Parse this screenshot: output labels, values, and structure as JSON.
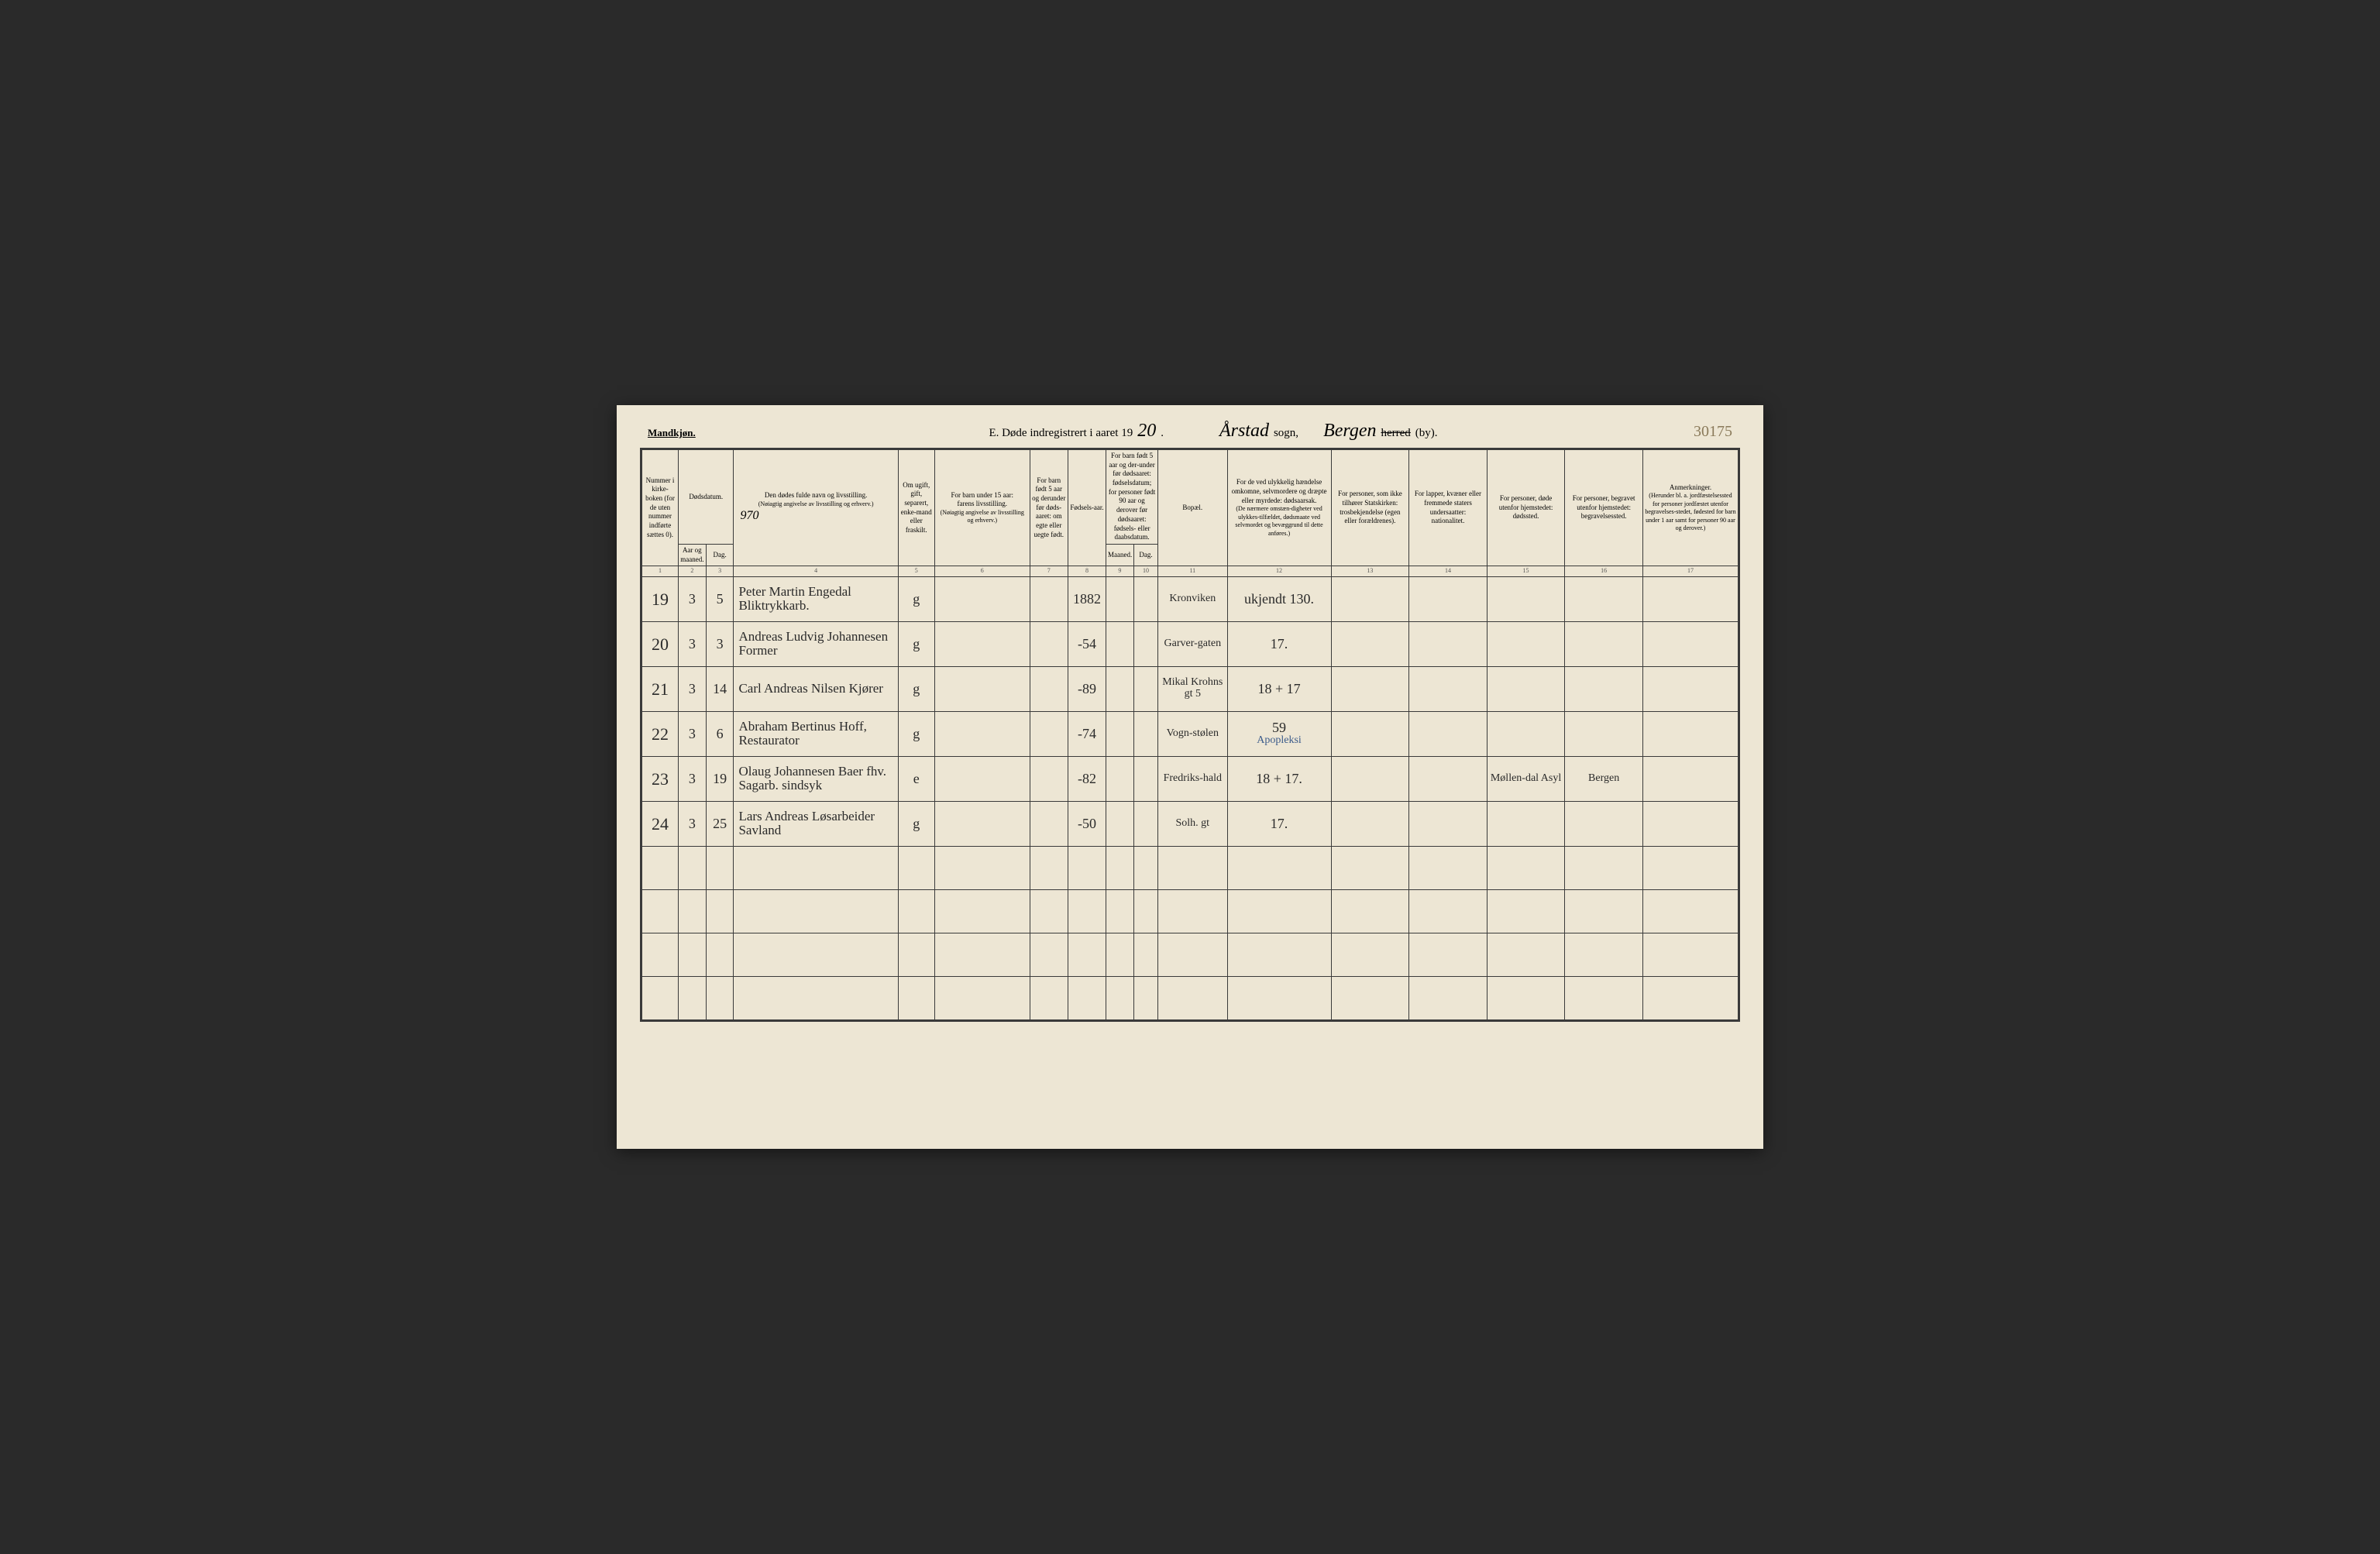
{
  "colors": {
    "paper": "#ede6d4",
    "ink": "#2a2a2a",
    "rule": "#3a3a3a",
    "blueink": "#3a5a8a",
    "faint": "#8a7a5a"
  },
  "header": {
    "gender": "Mandkjøn.",
    "title_prefix": "E.  Døde indregistrert i aaret 19",
    "year_hand": "20",
    "period": ".",
    "sogn_hand": "Årstad",
    "sogn_lbl": "sogn,",
    "herred_hand": "Bergen",
    "herred_strike": "herred",
    "by_lbl": "(by).",
    "page_num": "30175"
  },
  "columns": {
    "c1": "Nummer i kirke-boken (for de uten nummer indførte sættes 0).",
    "c2_top": "Dødsdatum.",
    "c2a": "Aar og maaned.",
    "c2b": "Dag.",
    "c3_top": "Den dødes fulde navn og livsstilling.",
    "c3_sub": "(Nøiagtig angivelse av livsstilling og erhverv.)",
    "c3_hand": "970",
    "c4": "Om ugift, gift, separert, enke-mand eller fraskilt.",
    "c5_top": "For barn under 15 aar:",
    "c5_sub": "farens livsstilling.",
    "c5_sub2": "(Nøiagtig angivelse av livsstilling og erhverv.)",
    "c6": "For barn født 5 aar og derunder før døds-aaret: om egte eller uegte født.",
    "c7": "Fødsels-aar.",
    "c8_top": "For barn født 5 aar og der-under før dødsaaret: fødselsdatum; for personer født 90 aar og derover før dødsaaret: fødsels- eller daabsdatum.",
    "c8a": "Maaned.",
    "c8b": "Dag.",
    "c9": "Bopæl.",
    "c10_top": "For de ved ulykkelig hændelse omkomne, selvmordere og dræpte eller myrdede: dødsaarsak.",
    "c10_sub": "(De nærmere omstæn-digheter ved ulykkes-tilfældet, dødsmaate ved selvmordet og bevæggrund til dette anføres.)",
    "c11_top": "For personer, som ikke tilhører Statskirken:",
    "c11_sub": "trosbekjendelse (egen eller forældrenes).",
    "c12_top": "For lapper, kvæner eller fremmede staters undersaatter:",
    "c12_sub": "nationalitet.",
    "c13_top": "For personer, døde utenfor hjemstedet:",
    "c13_sub": "dødssted.",
    "c14_top": "For personer, begravet utenfor hjemstedet:",
    "c14_sub": "begravelsessted.",
    "c15_top": "Anmerkninger.",
    "c15_sub": "(Herunder bl. a. jordfæstelsessted for personer jordfæstet utenfor begravelses-stedet, fødested for barn under 1 aar samt for personer 90 aar og derover.)"
  },
  "colnums": [
    "1",
    "2",
    "3",
    "4",
    "5",
    "6",
    "7",
    "8",
    "9",
    "10",
    "11",
    "12",
    "13",
    "14",
    "15",
    "16",
    "17"
  ],
  "rows": [
    {
      "num": "19",
      "aar": "3",
      "dag": "5",
      "name": "Peter Martin Engedal Bliktrykkarb.",
      "marital": "g",
      "faar": "1882",
      "bopael": "Kronviken",
      "cause": "ukjendt 130."
    },
    {
      "num": "20",
      "aar": "3",
      "dag": "3",
      "name": "Andreas Ludvig Johannesen Former",
      "marital": "g",
      "faar": "-54",
      "bopael": "Garver-gaten",
      "cause": "17."
    },
    {
      "num": "21",
      "aar": "3",
      "dag": "14",
      "name": "Carl Andreas Nilsen Kjører",
      "marital": "g",
      "faar": "-89",
      "bopael": "Mikal Krohns gt 5",
      "cause": "18 + 17"
    },
    {
      "num": "22",
      "aar": "3",
      "dag": "6",
      "name": "Abraham Bertinus Hoff, Restaurator",
      "marital": "g",
      "faar": "-74",
      "bopael": "Vogn-stølen",
      "cause": "59",
      "cause_note": "Apopleksi"
    },
    {
      "num": "23",
      "aar": "3",
      "dag": "19",
      "name": "Olaug Johannesen Baer fhv. Sagarb. sindsyk",
      "marital": "e",
      "faar": "-82",
      "bopael": "Fredriks-hald",
      "cause": "18 + 17.",
      "deathplace": "Møllen-dal Asyl",
      "burialplace": "Bergen"
    },
    {
      "num": "24",
      "aar": "3",
      "dag": "25",
      "name": "Lars Andreas Løsarbeider Savland",
      "marital": "g",
      "faar": "-50",
      "bopael": "Solh. gt",
      "cause": "17."
    }
  ],
  "empty_rows": 4
}
